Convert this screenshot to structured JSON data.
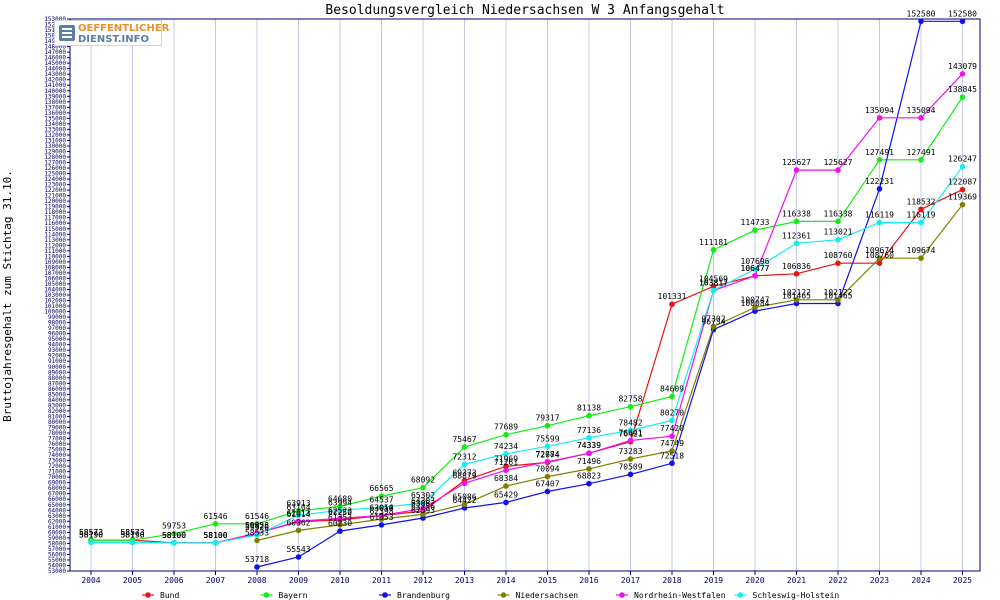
{
  "brand": {
    "line1": "OEFFENTLICHER",
    "line2": "DIENST.INFO"
  },
  "colors": {
    "axis": "#00007f",
    "grid": "#c8c8e6",
    "tick_text": "#000066",
    "label_text": "#000000",
    "title_text": "#000066"
  },
  "chart_data": {
    "type": "line",
    "title": "Besoldungsvergleich Niedersachsen W 3 Anfangsgehalt",
    "xlabel": "",
    "ylabel": "Bruttojahresgehalt zum Stichtag 31.10.",
    "ylim": [
      53000,
      153000
    ],
    "y_tick_step": 1000,
    "grid": true,
    "legend_position": "bottom",
    "categories": [
      "2004",
      "2005",
      "2006",
      "2007",
      "2008",
      "2009",
      "2010",
      "2011",
      "2012",
      "2013",
      "2014",
      "2015",
      "2016",
      "2017",
      "2018",
      "2019",
      "2020",
      "2021",
      "2022",
      "2023",
      "2024",
      "2025"
    ],
    "series": [
      {
        "name": "Bund",
        "color": "#ee1111",
        "values": [
          58573,
          58573,
          58100,
          58100,
          59853,
          61914,
          62250,
          63014,
          63862,
          69373,
          71969,
          72674,
          74339,
          76421,
          101331,
          104569,
          106477,
          106836,
          108760,
          108760,
          118532,
          122087
        ]
      },
      {
        "name": "Bayern",
        "color": "#11ee11",
        "values": [
          58573,
          58573,
          59753,
          61546,
          61546,
          63913,
          64680,
          66565,
          68092,
          75467,
          77689,
          79317,
          81138,
          82758,
          84609,
          111181,
          114733,
          116338,
          116338,
          127491,
          127491,
          138845
        ]
      },
      {
        "name": "Brandenburg",
        "color": "#1111ee",
        "values": [
          null,
          null,
          null,
          null,
          53718,
          55543,
          60230,
          61353,
          62593,
          64422,
          65429,
          67407,
          68823,
          70509,
          72518,
          96734,
          100084,
          101465,
          101465,
          122231,
          152580,
          152580
        ]
      },
      {
        "name": "Niedersachsen",
        "color": "#808000",
        "values": [
          null,
          null,
          null,
          null,
          58533,
          60362,
          61353,
          62398,
          63256,
          65086,
          68384,
          70094,
          71496,
          73283,
          74749,
          97302,
          100747,
          102122,
          102122,
          109674,
          109674,
          119369
        ]
      },
      {
        "name": "Nordrhein-Westfalen",
        "color": "#ee11ee",
        "values": [
          58190,
          58190,
          58100,
          58100,
          59826,
          62013,
          62523,
          63050,
          64303,
          68879,
          71261,
          72784,
          74339,
          76641,
          77420,
          103817,
          106477,
          125627,
          125627,
          135094,
          135094,
          143079
        ]
      },
      {
        "name": "Schleswig-Holstein",
        "color": "#11eeee",
        "values": [
          58190,
          58190,
          58100,
          58100,
          59520,
          63104,
          63994,
          64537,
          65302,
          72312,
          74234,
          75599,
          77136,
          78482,
          80270,
          103817,
          107696,
          112361,
          113021,
          116119,
          116119,
          126247
        ]
      }
    ]
  }
}
